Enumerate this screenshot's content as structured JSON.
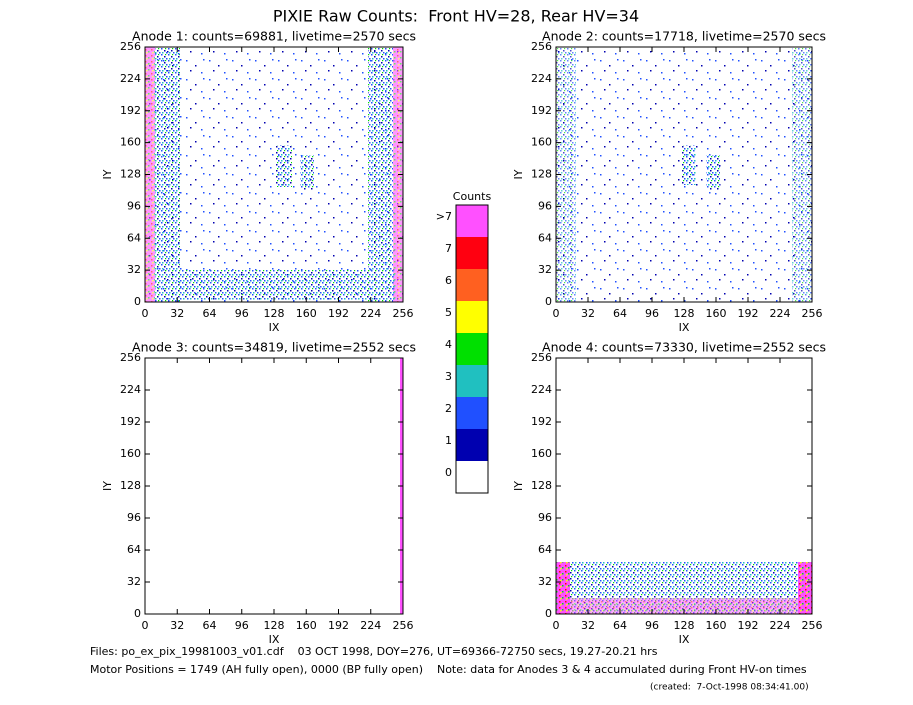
{
  "title": "PIXIE Raw Counts:  Front HV=28, Rear HV=34",
  "chart_data": [
    {
      "type": "heatmap",
      "title": "Anode 1: counts=69881, livetime=2570 secs",
      "xlabel": "IX",
      "ylabel": "IY",
      "xlim": [
        0,
        256
      ],
      "ylim": [
        0,
        256
      ],
      "xticks": [
        0,
        32,
        64,
        96,
        128,
        160,
        192,
        224,
        256
      ],
      "yticks": [
        0,
        32,
        64,
        96,
        128,
        160,
        192,
        224,
        256
      ]
    },
    {
      "type": "heatmap",
      "title": "Anode 2: counts=17718, livetime=2570 secs",
      "xlabel": "IX",
      "ylabel": "IY",
      "xlim": [
        0,
        256
      ],
      "ylim": [
        0,
        256
      ],
      "xticks": [
        0,
        32,
        64,
        96,
        128,
        160,
        192,
        224,
        256
      ],
      "yticks": [
        0,
        32,
        64,
        96,
        128,
        160,
        192,
        224,
        256
      ]
    },
    {
      "type": "heatmap",
      "title": "Anode 3: counts=34819, livetime=2552 secs",
      "xlabel": "IX",
      "ylabel": "IY",
      "xlim": [
        0,
        256
      ],
      "ylim": [
        0,
        256
      ],
      "xticks": [
        0,
        32,
        64,
        96,
        128,
        160,
        192,
        224,
        256
      ],
      "yticks": [
        0,
        32,
        64,
        96,
        128,
        160,
        192,
        224,
        256
      ]
    },
    {
      "type": "heatmap",
      "title": "Anode 4: counts=73330, livetime=2552 secs",
      "xlabel": "IX",
      "ylabel": "IY",
      "xlim": [
        0,
        256
      ],
      "ylim": [
        0,
        256
      ],
      "xticks": [
        0,
        32,
        64,
        96,
        128,
        160,
        192,
        224,
        256
      ],
      "yticks": [
        0,
        32,
        64,
        96,
        128,
        160,
        192,
        224,
        256
      ]
    }
  ],
  "colorbar": {
    "title": "Counts",
    "labels": [
      "0",
      "1",
      "2",
      "3",
      "4",
      "5",
      "6",
      "7",
      ">7"
    ],
    "colors": [
      "#ffffff",
      "#0000b0",
      "#2050ff",
      "#20c0c0",
      "#00e000",
      "#ffff00",
      "#ff6020",
      "#ff0010",
      "#ff50ff"
    ]
  },
  "footer": {
    "files": "Files: po_ex_pix_19981003_v01.cdf    03 OCT 1998, DOY=276, UT=69366-72750 secs, 19.27-20.21 hrs",
    "motor": "Motor Positions = 1749 (AH fully open), 0000 (BP fully open)    Note: data for Anodes 3 & 4 accumulated during Front HV-on times",
    "created": "(created:  7-Oct-1998 08:34:41.00)"
  }
}
